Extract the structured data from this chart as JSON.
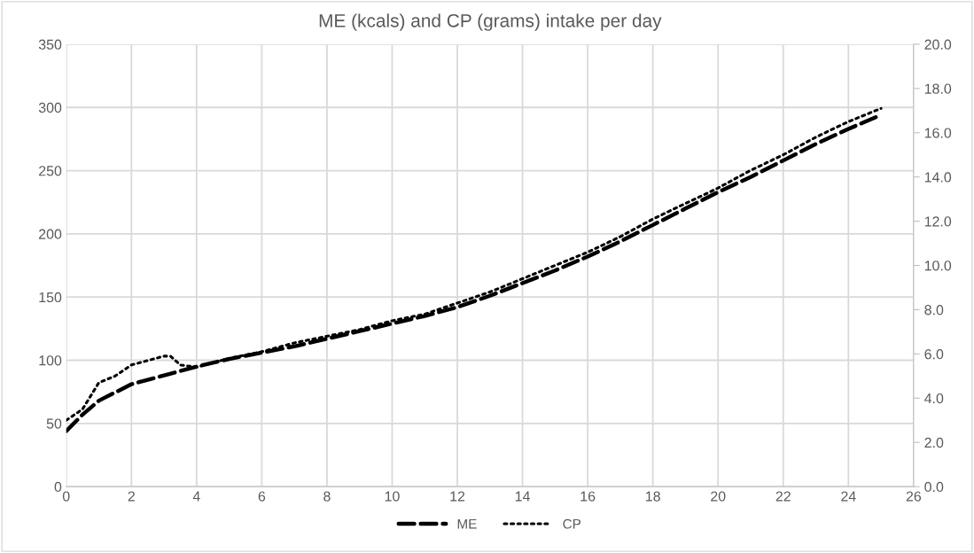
{
  "chart_data": {
    "type": "line",
    "title": "ME (kcals) and CP (grams) intake per day",
    "xlim": [
      0,
      26
    ],
    "xticks": [
      0,
      2,
      4,
      6,
      8,
      10,
      12,
      14,
      16,
      18,
      20,
      22,
      24,
      26
    ],
    "ylim": [
      0,
      350
    ],
    "yticks": [
      0,
      50,
      100,
      150,
      200,
      250,
      300,
      350
    ],
    "y2lim": [
      0,
      20
    ],
    "y2ticks": [
      {
        "value": 0,
        "label": "0.0"
      },
      {
        "value": 2,
        "label": "2.0"
      },
      {
        "value": 4,
        "label": "4.0"
      },
      {
        "value": 6,
        "label": "6.0"
      },
      {
        "value": 8,
        "label": "8.0"
      },
      {
        "value": 10,
        "label": "10.0"
      },
      {
        "value": 12,
        "label": "12.0"
      },
      {
        "value": 14,
        "label": "14.0"
      },
      {
        "value": 16,
        "label": "16.0"
      },
      {
        "value": 18,
        "label": "18.0"
      },
      {
        "value": 20,
        "label": "20.0"
      }
    ],
    "grid": true,
    "legend": "bottom",
    "marker": "none",
    "series": [
      {
        "name": "ME",
        "color": "#000000",
        "line_style": "dashed",
        "x": [
          0,
          0.5,
          1,
          2,
          3,
          4,
          5,
          6,
          7,
          8,
          9,
          10,
          11,
          12,
          13,
          14,
          15,
          16,
          17,
          18,
          19,
          20,
          21,
          22,
          23,
          24,
          25
        ],
        "values": [
          44,
          57,
          68,
          81,
          88,
          95,
          101,
          106,
          111,
          117,
          123,
          129,
          135,
          142,
          151,
          161,
          171,
          182,
          194,
          207,
          220,
          233,
          245,
          258,
          271,
          283,
          294
        ]
      },
      {
        "name": "CP",
        "color": "#000000",
        "line_style": "dotted",
        "axis": "y2",
        "x": [
          0,
          0.5,
          1,
          1.5,
          2,
          2.5,
          3,
          3.2,
          3.5,
          4,
          5,
          6,
          7,
          8,
          9,
          10,
          11,
          12,
          13,
          14,
          15,
          16,
          17,
          18,
          19,
          20,
          21,
          22,
          23,
          24,
          25
        ],
        "values": [
          3.0,
          3.5,
          4.7,
          5.0,
          5.5,
          5.7,
          5.9,
          5.9,
          5.5,
          5.4,
          5.8,
          6.1,
          6.5,
          6.8,
          7.1,
          7.5,
          7.8,
          8.3,
          8.8,
          9.4,
          10.0,
          10.6,
          11.3,
          12.1,
          12.8,
          13.5,
          14.3,
          15.0,
          15.8,
          16.5,
          17.1
        ]
      }
    ]
  }
}
